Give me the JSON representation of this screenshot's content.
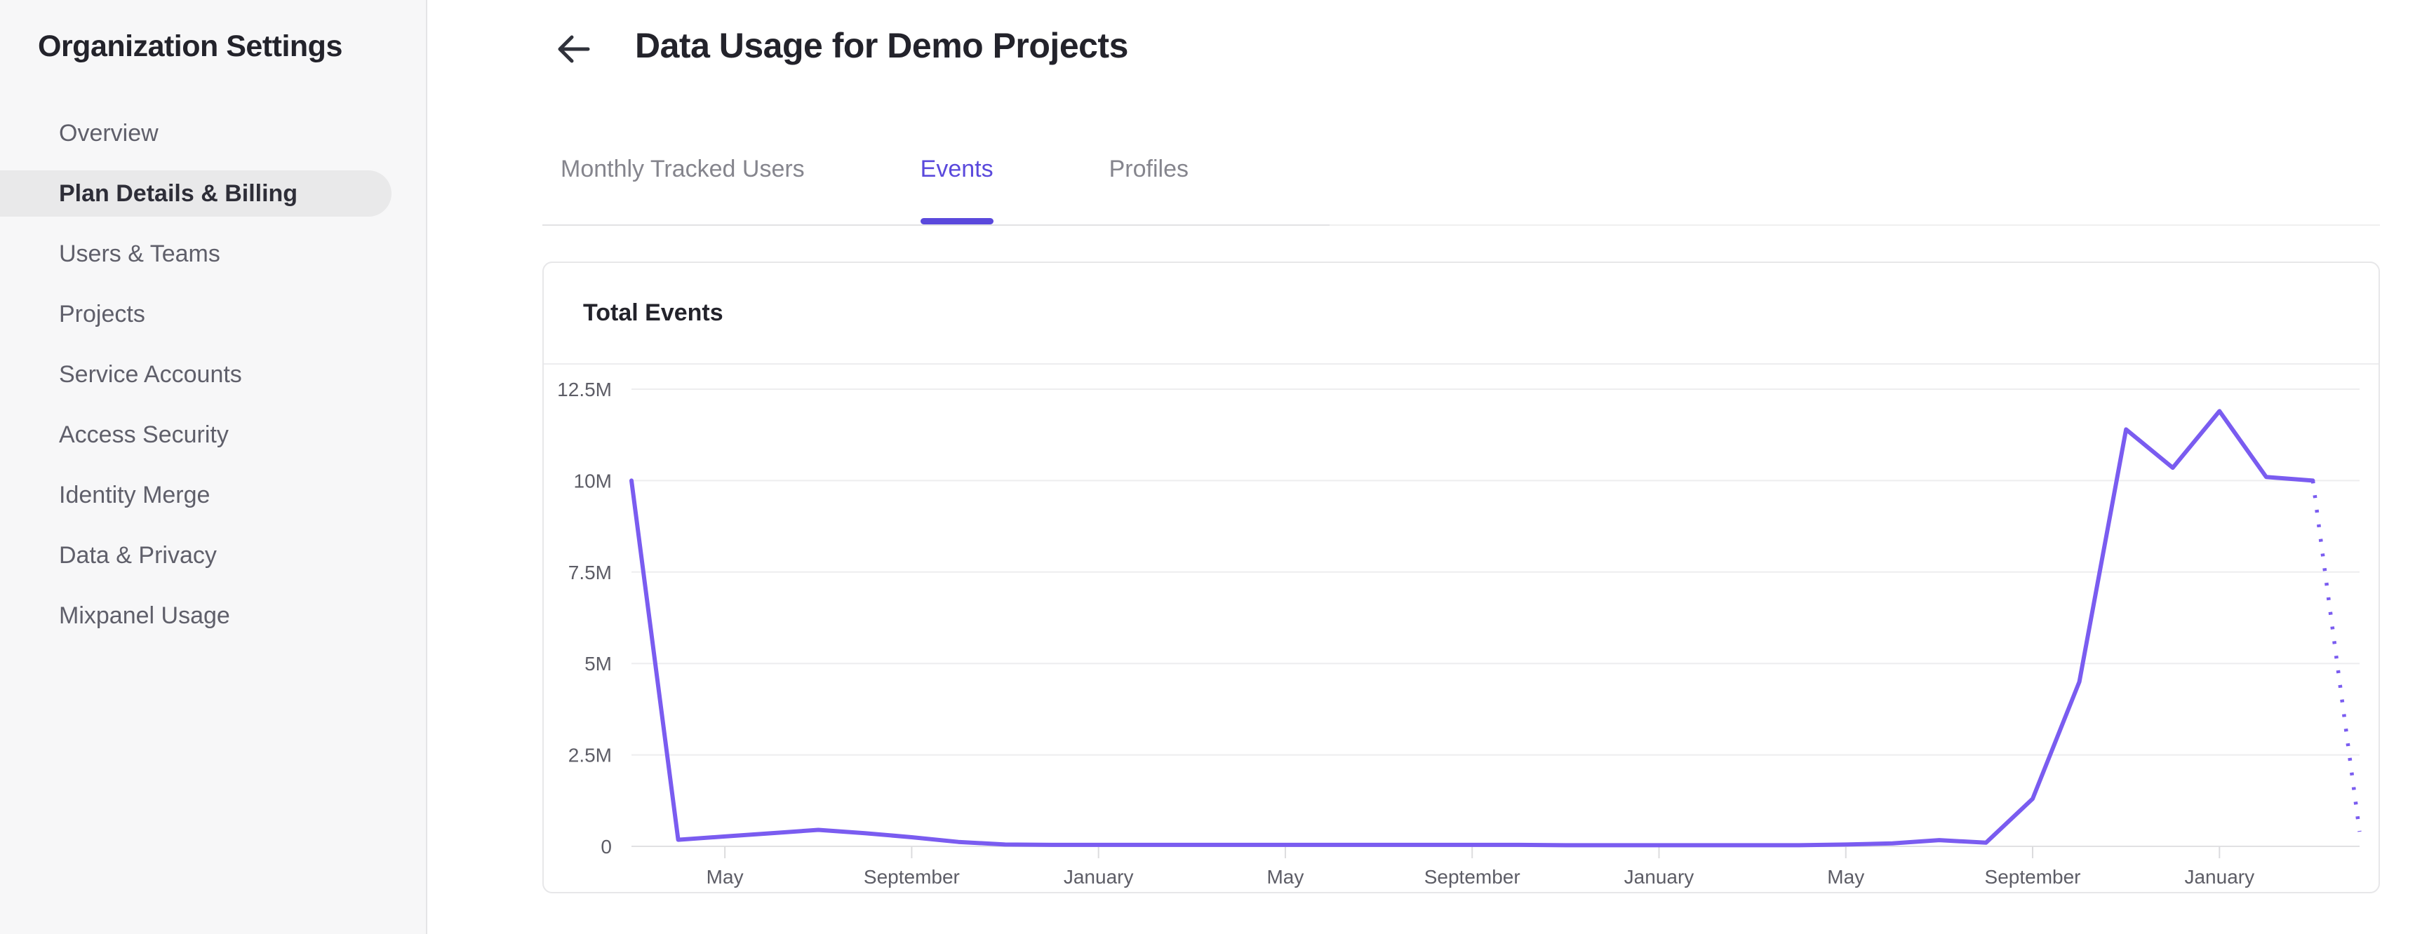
{
  "sidebar": {
    "title": "Organization Settings",
    "items": [
      {
        "label": "Overview",
        "active": false
      },
      {
        "label": "Plan Details & Billing",
        "active": true
      },
      {
        "label": "Users & Teams",
        "active": false
      },
      {
        "label": "Projects",
        "active": false
      },
      {
        "label": "Service Accounts",
        "active": false
      },
      {
        "label": "Access Security",
        "active": false
      },
      {
        "label": "Identity Merge",
        "active": false
      },
      {
        "label": "Data & Privacy",
        "active": false
      },
      {
        "label": "Mixpanel Usage",
        "active": false
      }
    ]
  },
  "header": {
    "title": "Data Usage for Demo Projects",
    "back_icon": "arrow-left-icon"
  },
  "tabs": [
    {
      "label": "Monthly Tracked Users",
      "active": false
    },
    {
      "label": "Events",
      "active": true
    },
    {
      "label": "Profiles",
      "active": false
    }
  ],
  "card": {
    "title": "Total Events"
  },
  "colors": {
    "accent": "#5a49dc",
    "chart_line": "#7a5cf0",
    "sidebar_active_bg": "#e9e9ea",
    "grid_line": "#ededef",
    "axis_text": "#5d5d66"
  },
  "chart_data": {
    "type": "line",
    "title": "Total Events",
    "legend": "none",
    "grid": "horizontal",
    "ylim_millions": [
      0,
      12.5
    ],
    "y_tick_labels": [
      "0",
      "2.5M",
      "5M",
      "7.5M",
      "10M",
      "12.5M"
    ],
    "y_tick_values_millions": [
      0,
      2.5,
      5,
      7.5,
      10,
      12.5
    ],
    "x_tick_labels": [
      "May",
      "September",
      "January",
      "May",
      "September",
      "January",
      "May",
      "September",
      "January"
    ],
    "x_tick_point_indices": [
      2,
      6,
      10,
      14,
      18,
      22,
      26,
      30,
      34
    ],
    "series": [
      {
        "name": "Total Events",
        "values_millions": [
          10,
          0.18,
          0.27,
          0.36,
          0.45,
          0.36,
          0.25,
          0.12,
          0.05,
          0.04,
          0.04,
          0.04,
          0.04,
          0.04,
          0.04,
          0.04,
          0.04,
          0.04,
          0.04,
          0.04,
          0.03,
          0.03,
          0.03,
          0.03,
          0.03,
          0.03,
          0.05,
          0.08,
          0.17,
          0.1,
          1.3,
          4.5,
          11.4,
          10.35,
          11.9,
          10.1,
          10,
          0.4
        ],
        "solid_until_index": 36,
        "dotted_from_index": 36,
        "dotted_note": "final segment shown dotted (incomplete period)"
      }
    ]
  }
}
